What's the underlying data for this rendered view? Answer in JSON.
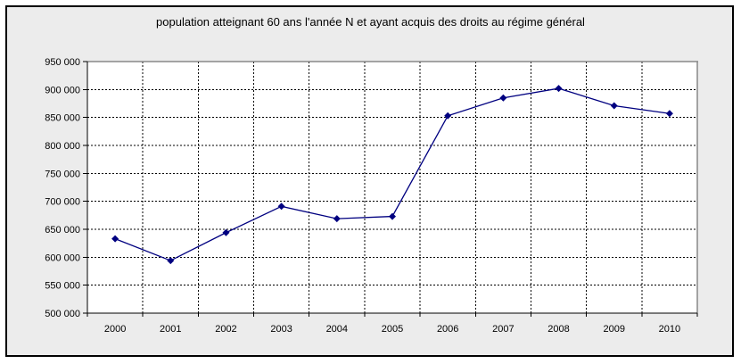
{
  "chart_data": {
    "type": "line",
    "title": "population atteignant 60 ans l'année N et ayant acquis des droits au régime général",
    "categories": [
      "2000",
      "2001",
      "2002",
      "2003",
      "2004",
      "2005",
      "2006",
      "2007",
      "2008",
      "2009",
      "2010"
    ],
    "values": [
      633000,
      594000,
      644000,
      691000,
      669000,
      673000,
      853000,
      885000,
      902000,
      871000,
      857000
    ],
    "xlabel": "",
    "ylabel": "",
    "ylim": [
      500000,
      950000
    ],
    "ytick_step": 50000,
    "ytick_labels": [
      "500 000",
      "550 000",
      "600 000",
      "650 000",
      "700 000",
      "750 000",
      "800 000",
      "850 000",
      "900 000",
      "950 000"
    ],
    "grid": true,
    "legend": false,
    "marker": "diamond"
  },
  "colors": {
    "page_bg": "#ffffff",
    "chart_bg": "#ececec",
    "plot_bg": "#ffffff",
    "frame_border": "#000000",
    "plot_border": "#888888",
    "gridline": "#000000",
    "axis": "#000000",
    "series_line": "#000080",
    "marker_fill": "#000080",
    "text": "#000000"
  }
}
